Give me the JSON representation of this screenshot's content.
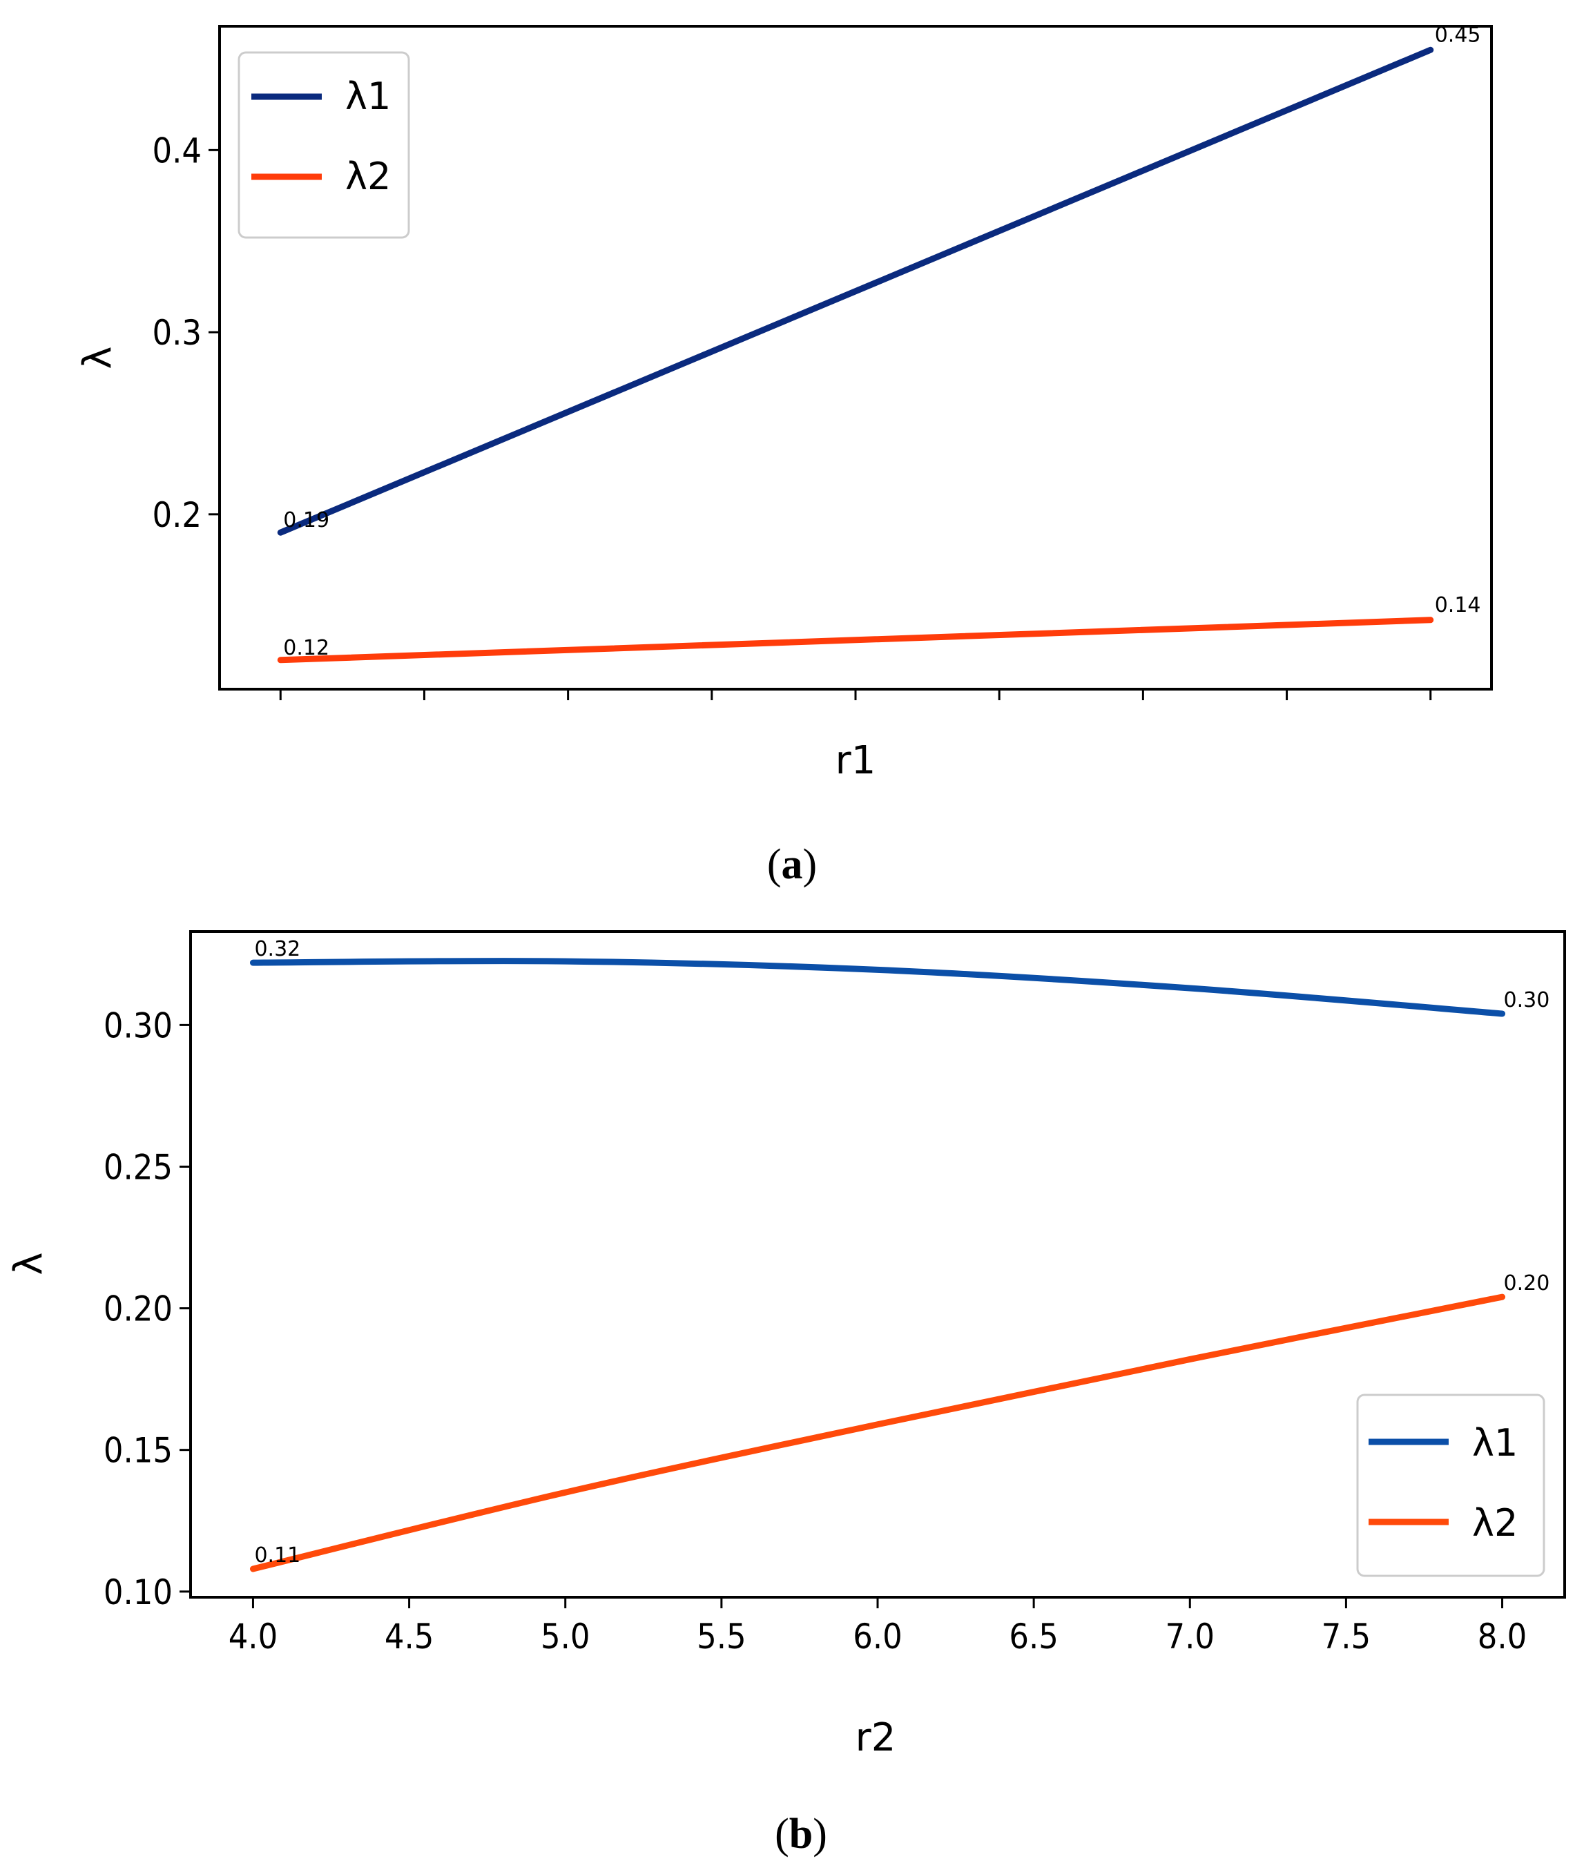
{
  "chart_data": [
    {
      "type": "line",
      "title": "",
      "xlabel": "r1",
      "ylabel": "λ",
      "caption_letter": "a",
      "x": [
        0,
        1
      ],
      "xlim": [
        -0.053,
        1.053
      ],
      "xticks": [
        0,
        0.125,
        0.25,
        0.375,
        0.5,
        0.625,
        0.75,
        0.875,
        1
      ],
      "ylim": [
        0.104,
        0.468
      ],
      "yticks": [
        0.2,
        0.3,
        0.4
      ],
      "ytick_labels": [
        "0.2",
        "0.3",
        "0.4"
      ],
      "legend_position": "upper left",
      "series": [
        {
          "name": "λ1",
          "color": "#0a2a7e",
          "values": [
            0.19,
            0.455
          ],
          "point_labels": [
            "0.19",
            "0.45"
          ]
        },
        {
          "name": "λ2",
          "color": "#ff3c0a",
          "values": [
            0.12,
            0.142
          ],
          "point_labels": [
            "0.12",
            "0.14"
          ]
        }
      ]
    },
    {
      "type": "line",
      "title": "",
      "xlabel": "r2",
      "ylabel": "λ",
      "caption_letter": "b",
      "x": [
        4.0,
        5.0,
        6.0,
        7.0,
        8.0
      ],
      "xlim": [
        3.8,
        8.2
      ],
      "xticks": [
        4.0,
        4.5,
        5.0,
        5.5,
        6.0,
        6.5,
        7.0,
        7.5,
        8.0
      ],
      "xtick_labels": [
        "4.0",
        "4.5",
        "5.0",
        "5.5",
        "6.0",
        "6.5",
        "7.0",
        "7.5",
        "8.0"
      ],
      "ylim": [
        0.098,
        0.333
      ],
      "yticks": [
        0.1,
        0.15,
        0.2,
        0.25,
        0.3
      ],
      "ytick_labels": [
        "0.10",
        "0.15",
        "0.20",
        "0.25",
        "0.30"
      ],
      "legend_position": "lower right",
      "series": [
        {
          "name": "λ1",
          "color": "#0b4fa8",
          "values": [
            0.322,
            0.3225,
            0.3195,
            0.313,
            0.304
          ],
          "point_labels": [
            "0.32",
            "0.30"
          ]
        },
        {
          "name": "λ2",
          "color": "#ff4a0a",
          "values": [
            0.108,
            0.135,
            0.159,
            0.182,
            0.204
          ],
          "point_labels": [
            "0.11",
            "0.20"
          ]
        }
      ]
    }
  ]
}
